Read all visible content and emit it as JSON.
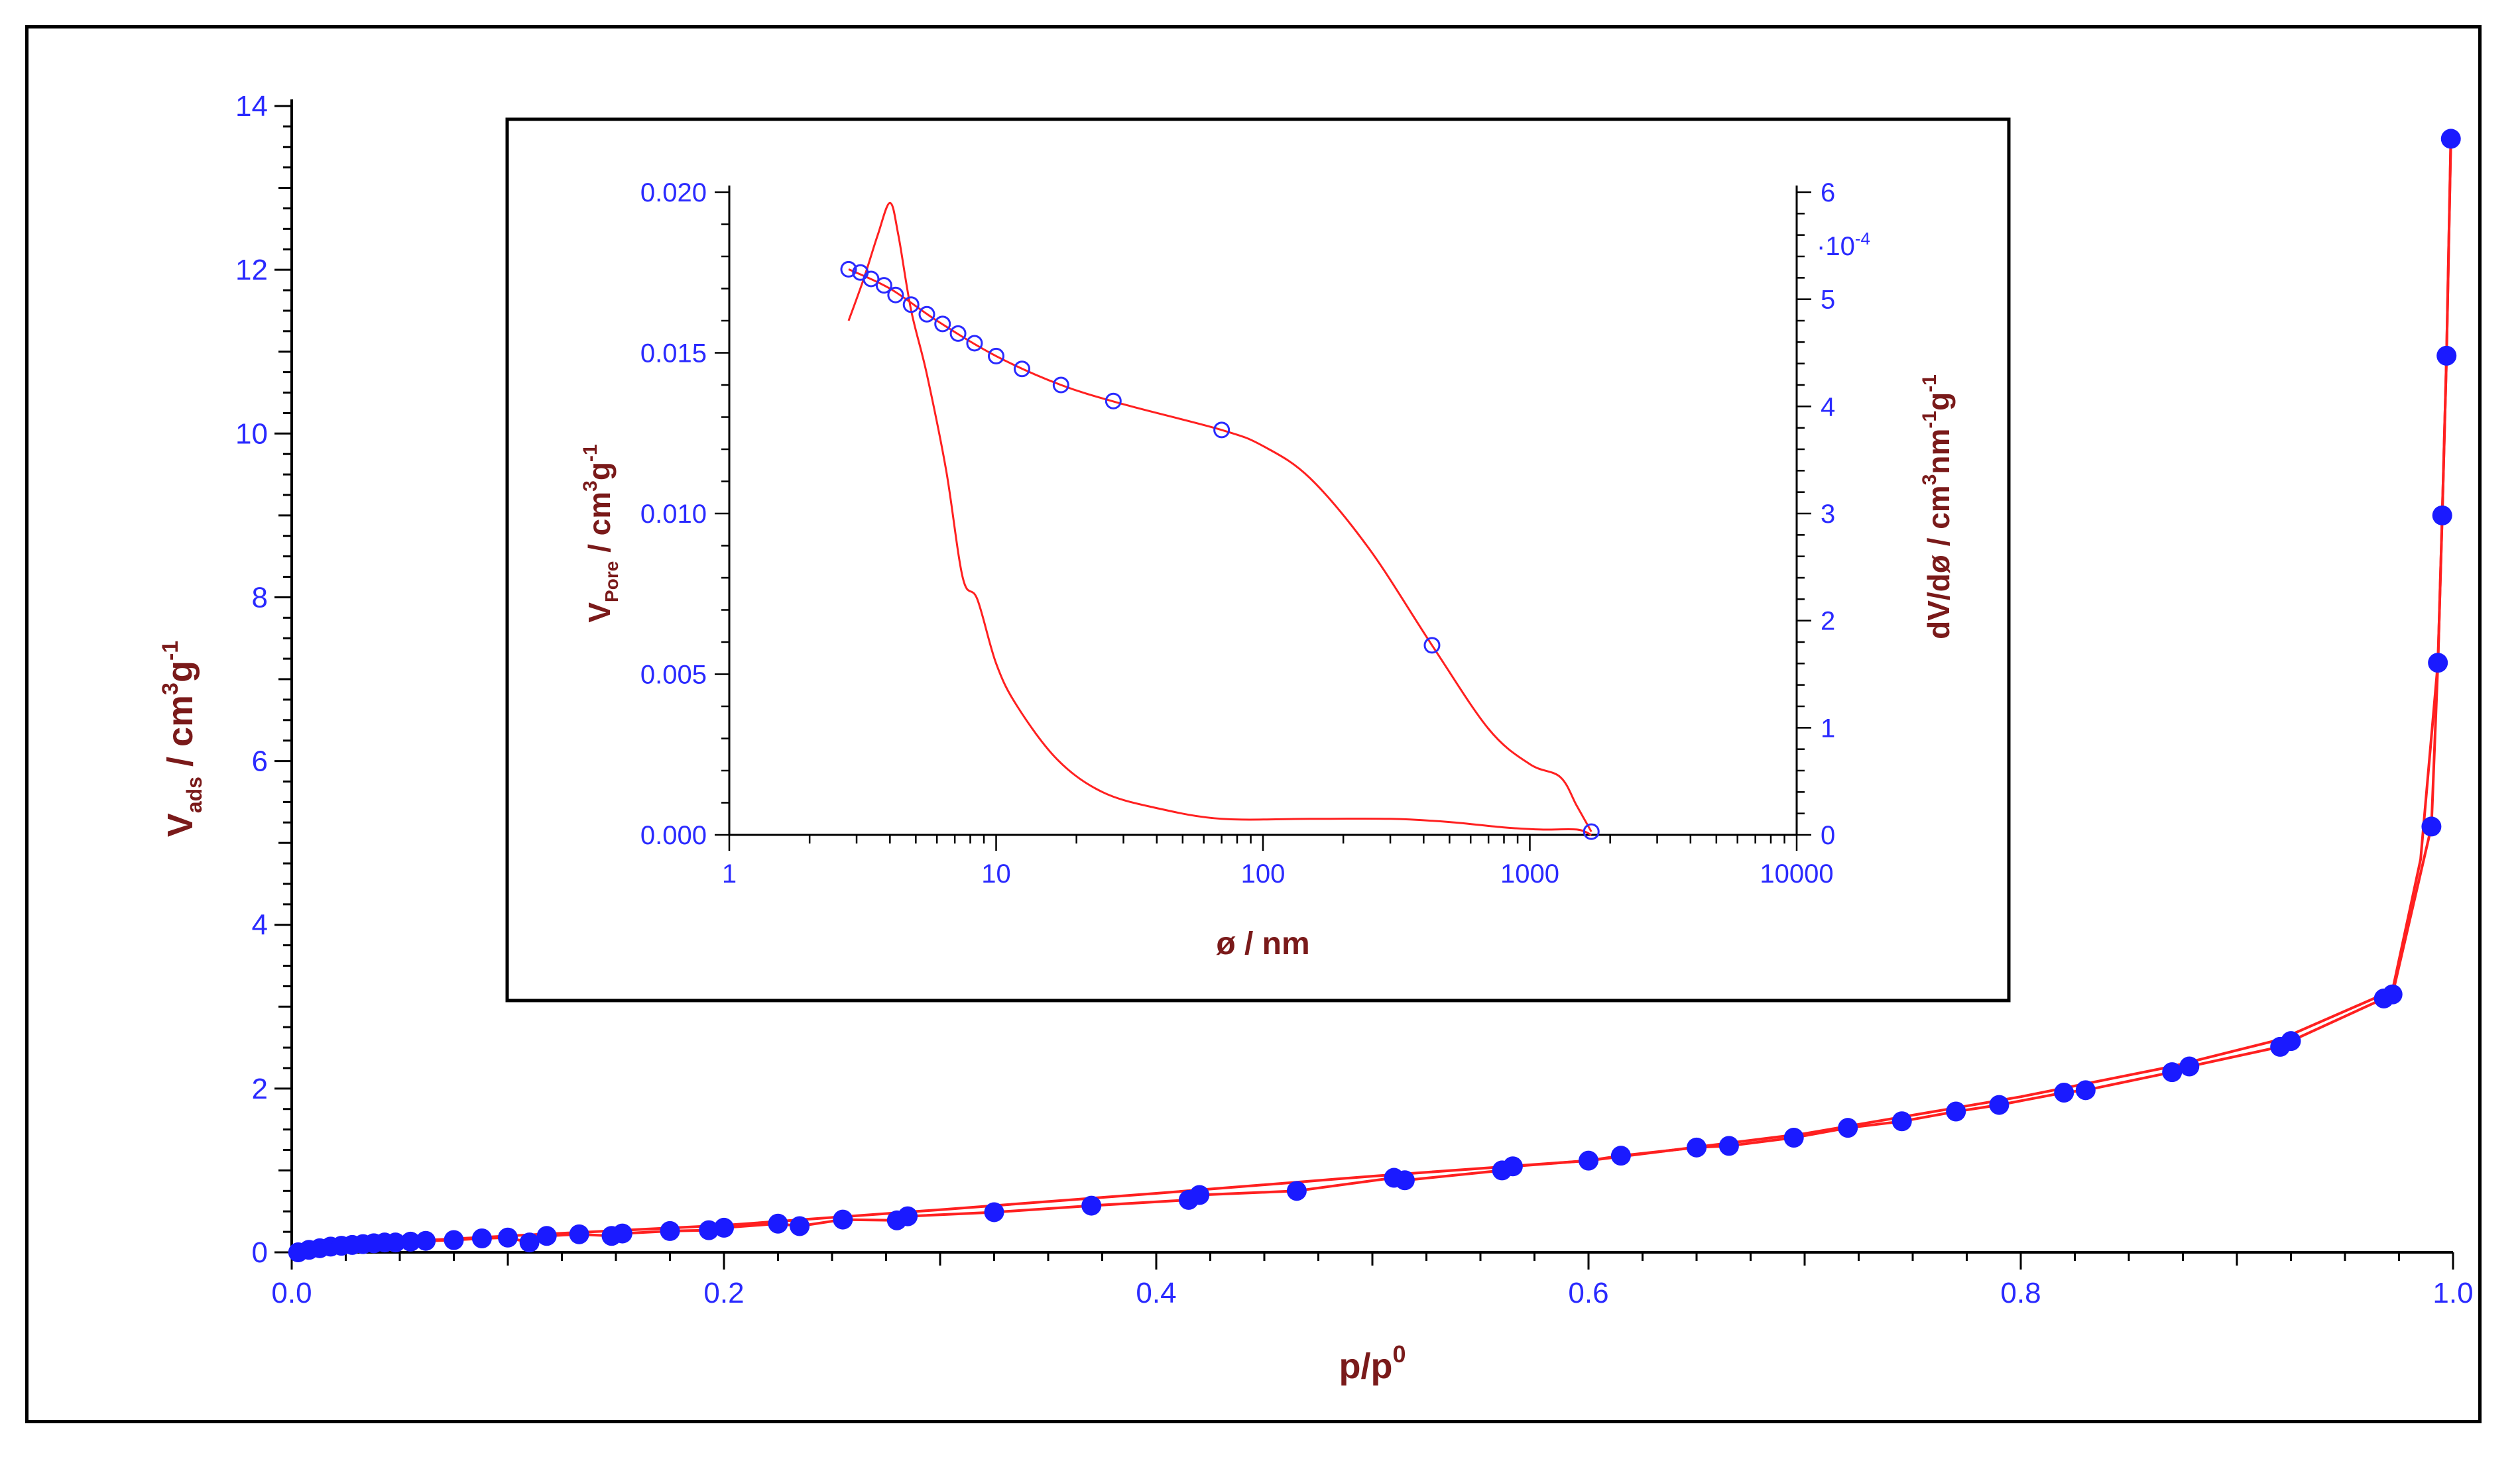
{
  "chart_data": [
    {
      "type": "scatter",
      "name": "main-isotherm",
      "xlabel_main": "p/p",
      "xlabel_sup": "0",
      "ylabel_main": "V",
      "ylabel_sub": "ads",
      "ylabel_unit_a": " / cm",
      "ylabel_unit_sup1": "3",
      "ylabel_unit_b": "g",
      "ylabel_unit_sup2": "-1",
      "xlim": [
        0.0,
        1.0
      ],
      "ylim": [
        0,
        14
      ],
      "x_ticks": [
        0.0,
        0.2,
        0.4,
        0.6,
        0.8,
        1.0
      ],
      "x_tick_labels": [
        "0.0",
        "0.2",
        "0.4",
        "0.6",
        "0.8",
        "1.0"
      ],
      "y_ticks": [
        0,
        2,
        4,
        6,
        8,
        10,
        12,
        14
      ],
      "y_tick_labels": [
        "0",
        "2",
        "4",
        "6",
        "8",
        "10",
        "12",
        "14"
      ],
      "marker_color": "#1a1aff",
      "line_color": "#ff2020",
      "series": [
        {
          "name": "adsorption",
          "x": [
            0.003,
            0.008,
            0.013,
            0.018,
            0.023,
            0.028,
            0.033,
            0.038,
            0.043,
            0.048,
            0.055,
            0.062,
            0.075,
            0.088,
            0.1,
            0.11,
            0.118,
            0.133,
            0.148,
            0.153,
            0.175,
            0.193,
            0.2,
            0.225,
            0.235,
            0.255,
            0.28,
            0.285,
            0.325,
            0.37,
            0.415,
            0.42,
            0.465,
            0.51,
            0.515,
            0.56,
            0.565,
            0.6,
            0.615,
            0.65,
            0.665,
            0.695,
            0.72,
            0.745,
            0.77,
            0.79,
            0.82,
            0.83,
            0.87,
            0.878,
            0.92,
            0.925,
            0.968,
            0.972,
            0.99,
            0.993,
            0.995,
            0.997,
            0.999
          ],
          "y": [
            0.0,
            0.03,
            0.05,
            0.07,
            0.08,
            0.09,
            0.1,
            0.11,
            0.12,
            0.12,
            0.13,
            0.14,
            0.15,
            0.17,
            0.18,
            0.12,
            0.2,
            0.22,
            0.2,
            0.23,
            0.26,
            0.27,
            0.3,
            0.35,
            0.32,
            0.4,
            0.39,
            0.44,
            0.49,
            0.57,
            0.64,
            0.7,
            0.75,
            0.91,
            0.88,
            1.0,
            1.05,
            1.12,
            1.18,
            1.28,
            1.3,
            1.4,
            1.52,
            1.6,
            1.72,
            1.8,
            1.95,
            1.98,
            2.2,
            2.27,
            2.51,
            2.58,
            3.1,
            3.15,
            5.2,
            7.2,
            9.0,
            10.95,
            13.6
          ]
        },
        {
          "name": "desorption",
          "x": [
            0.999,
            0.997,
            0.995,
            0.993,
            0.985,
            0.972,
            0.92,
            0.87,
            0.8,
            0.7,
            0.6,
            0.5,
            0.4,
            0.3,
            0.2,
            0.1,
            0.05,
            0.01
          ],
          "y": [
            13.6,
            10.95,
            9.0,
            7.2,
            4.8,
            3.2,
            2.6,
            2.27,
            1.9,
            1.45,
            1.12,
            0.93,
            0.72,
            0.52,
            0.33,
            0.2,
            0.13,
            0.05
          ]
        }
      ]
    },
    {
      "type": "scatter",
      "name": "inset-pore-distribution",
      "xlabel": "ø / nm",
      "ylabel_left_main": "V",
      "ylabel_left_sub": "Pore",
      "ylabel_left_unit_a": " / cm",
      "ylabel_left_unit_sup1": "3",
      "ylabel_left_unit_b": "g",
      "ylabel_left_unit_sup2": "-1",
      "ylabel_right_main": "dV/dø / cm",
      "ylabel_right_sup1": "3",
      "ylabel_right_mid": "nm",
      "ylabel_right_sup2": "-1",
      "ylabel_right_end": "g",
      "ylabel_right_sup3": "-1",
      "right_multiplier": "·10",
      "right_multiplier_exp": "-4",
      "xscale": "log",
      "xlim": [
        1,
        10000
      ],
      "ylim_left": [
        0,
        0.02
      ],
      "ylim_right": [
        0,
        6
      ],
      "x_ticks": [
        1,
        10,
        100,
        1000,
        10000
      ],
      "x_tick_labels": [
        "1",
        "10",
        "100",
        "1000",
        "10000"
      ],
      "y_left_ticks": [
        0,
        0.005,
        0.01,
        0.015,
        0.02
      ],
      "y_left_tick_labels": [
        "0.000",
        "0.005",
        "0.010",
        "0.015",
        "0.020"
      ],
      "y_right_ticks": [
        0,
        1,
        2,
        3,
        4,
        5,
        6
      ],
      "y_right_tick_labels": [
        "0",
        "1",
        "2",
        "3",
        "4",
        "5",
        "6"
      ],
      "cumulative_points": {
        "x": [
          2.8,
          3.1,
          3.4,
          3.8,
          4.2,
          4.8,
          5.5,
          6.3,
          7.2,
          8.3,
          10.0,
          12.5,
          17.5,
          27.5,
          70,
          430,
          1700
        ],
        "y": [
          0.0176,
          0.0175,
          0.0173,
          0.0171,
          0.0168,
          0.0165,
          0.0162,
          0.0159,
          0.0156,
          0.0153,
          0.0149,
          0.0145,
          0.014,
          0.0135,
          0.0126,
          0.0059,
          0.0001
        ]
      },
      "cumulative_curve": {
        "x": [
          2.8,
          4,
          6,
          10,
          17.5,
          30,
          70,
          100,
          150,
          250,
          430,
          700,
          1000,
          1300,
          1500,
          1700
        ],
        "y": [
          0.0176,
          0.017,
          0.016,
          0.0149,
          0.014,
          0.0134,
          0.0126,
          0.0121,
          0.0111,
          0.0089,
          0.0059,
          0.0033,
          0.0022,
          0.0018,
          0.0009,
          0.0001
        ]
      },
      "distribution_curve": {
        "x": [
          2.8,
          3.2,
          3.6,
          4.0,
          4.3,
          4.8,
          5.5,
          6.5,
          7.5,
          8.5,
          10,
          12,
          17,
          25,
          40,
          70,
          150,
          300,
          500,
          800,
          1100,
          1500,
          1700
        ],
        "y": [
          4.8,
          5.2,
          5.6,
          5.9,
          5.6,
          4.9,
          4.3,
          3.4,
          2.4,
          2.2,
          1.6,
          1.2,
          0.7,
          0.4,
          0.25,
          0.15,
          0.15,
          0.15,
          0.12,
          0.07,
          0.05,
          0.05,
          0.0
        ]
      },
      "marker_color": "#2a2aff",
      "line_color": "#ff2020"
    }
  ]
}
